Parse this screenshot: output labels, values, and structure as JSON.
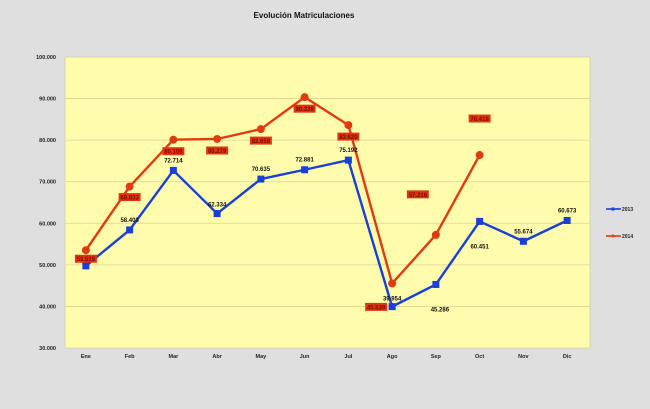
{
  "chart_data": {
    "type": "line",
    "title": "Evolución  Matriculaciones",
    "xlabel": "",
    "ylabel": "",
    "ylim": [
      30000,
      100000
    ],
    "yticks": [
      "30.000",
      "40.000",
      "50.000",
      "60.000",
      "70.000",
      "80.000",
      "90.000",
      "100.000"
    ],
    "grid": true,
    "legend_position": "right",
    "categories": [
      "Ene",
      "Feb",
      "Mar",
      "Abr",
      "May",
      "Jun",
      "Jul",
      "Ago",
      "Sep",
      "Oct",
      "Nov",
      "Dic"
    ],
    "series": [
      {
        "name": "2013",
        "color": "#1a3fd6",
        "marker": "square",
        "values": [
          49751,
          58403,
          72714,
          62334,
          70635,
          72881,
          75192,
          39954,
          45286,
          60451,
          55674,
          60673
        ],
        "labels": [
          "49.751",
          "58.403",
          "72.714",
          "62.334",
          "70.635",
          "72.881",
          "75.192",
          "39.954",
          "45.286",
          "60.451",
          "55.674",
          "60.673"
        ]
      },
      {
        "name": "2014",
        "color": "#e03a10",
        "marker": "circle",
        "values": [
          53519,
          68833,
          80106,
          80279,
          82658,
          90339,
          83620,
          45539,
          57216,
          76418,
          null,
          null
        ],
        "labels": [
          "53.519",
          "68.833",
          "80.106",
          "80.279",
          "82.658",
          "90.339",
          "83.620",
          "45.539",
          "57.216",
          "76.418"
        ]
      }
    ]
  },
  "legend": {
    "items": [
      {
        "label": "2013",
        "color": "#1a3fd6"
      },
      {
        "label": "2014",
        "color": "#e03a10"
      }
    ]
  }
}
